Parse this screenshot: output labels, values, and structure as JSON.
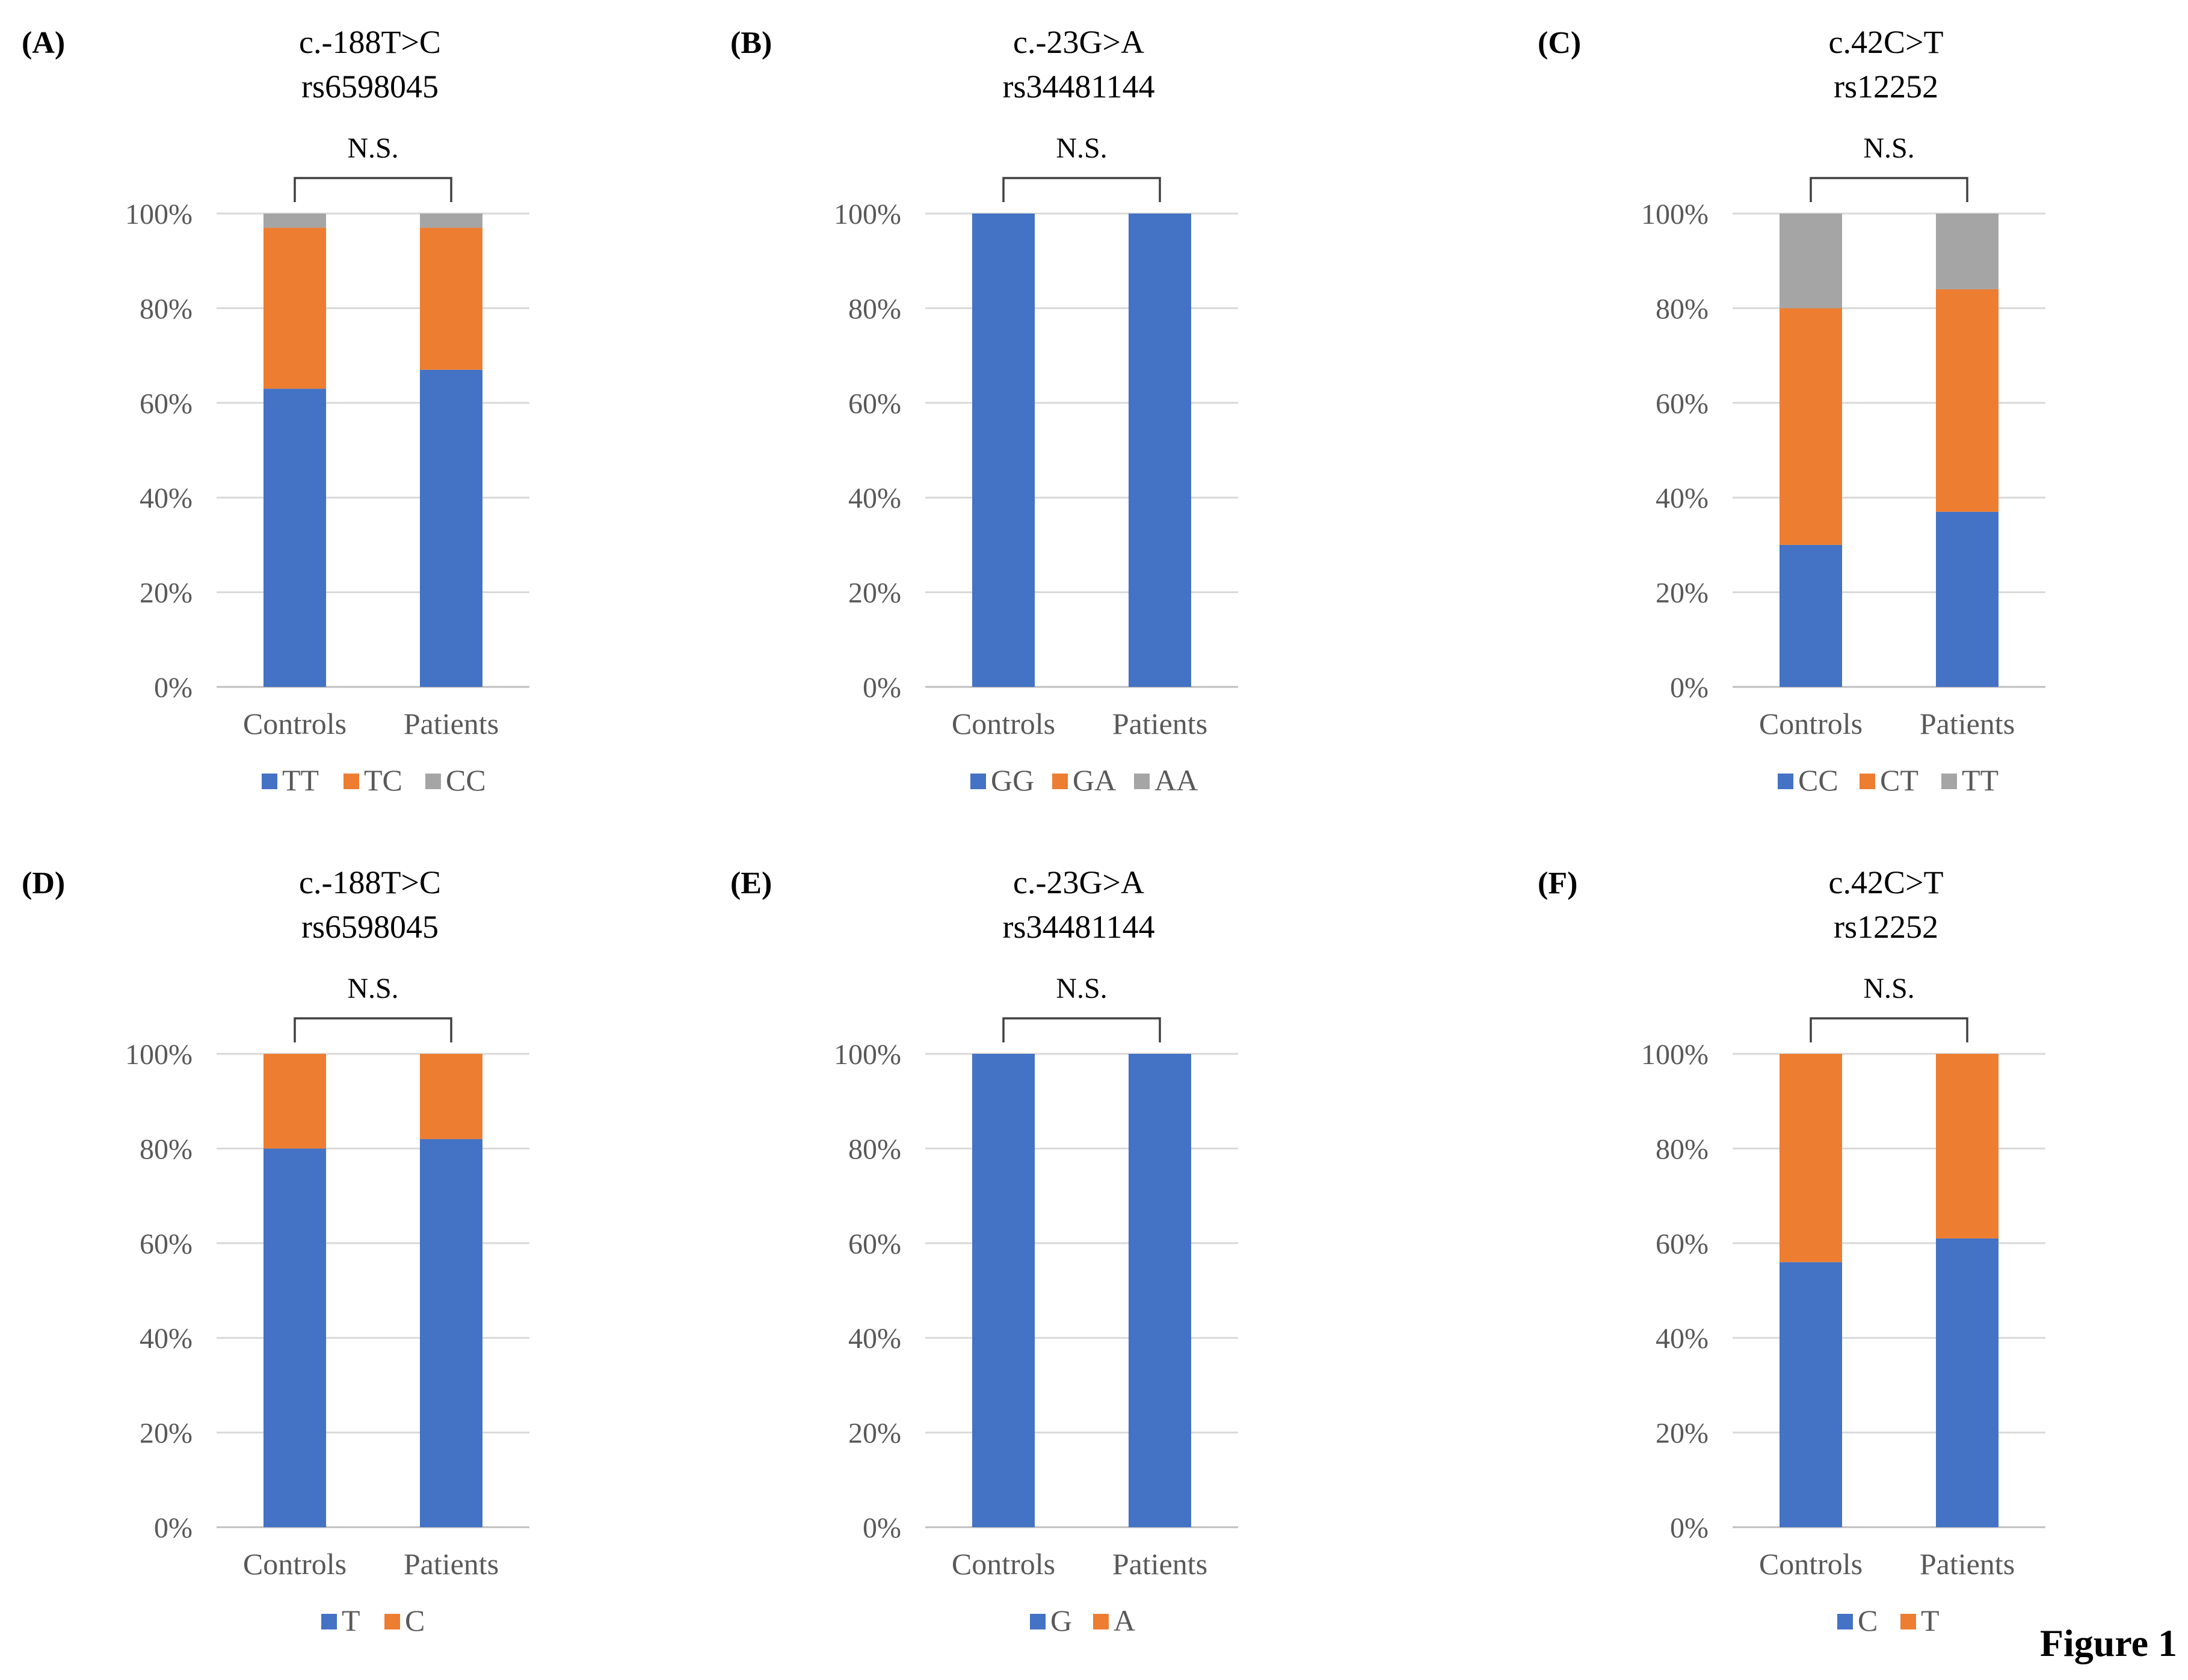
{
  "figure_label": "Figure 1",
  "colors": {
    "blue": "#4472C4",
    "orange": "#ED7D31",
    "gray": "#A5A5A5",
    "grid": "#D9D9D9",
    "axis": "#BFBFBF",
    "bracket": "#404040",
    "text": "#595959"
  },
  "chart_data": [
    {
      "type": "bar",
      "stacked": true,
      "panel": "(A)",
      "title": "c.-188T>C",
      "subtitle": "rs6598045",
      "significance": "N.S.",
      "categories": [
        "Controls",
        "Patients"
      ],
      "series": [
        {
          "name": "TT",
          "values": [
            63,
            67
          ],
          "color": "#4472C4"
        },
        {
          "name": "TC",
          "values": [
            34,
            30
          ],
          "color": "#ED7D31"
        },
        {
          "name": "CC",
          "values": [
            3,
            3
          ],
          "color": "#A5A5A5"
        }
      ],
      "ylim": [
        0,
        100
      ],
      "yticks": [
        "0%",
        "20%",
        "40%",
        "60%",
        "80%",
        "100%"
      ],
      "grid": true,
      "legend": "bottom"
    },
    {
      "type": "bar",
      "stacked": true,
      "panel": "(B)",
      "title": "c.-23G>A",
      "subtitle": "rs34481144",
      "significance": "N.S.",
      "categories": [
        "Controls",
        "Patients"
      ],
      "series": [
        {
          "name": "GG",
          "values": [
            100,
            100
          ],
          "color": "#4472C4"
        },
        {
          "name": "GA",
          "values": [
            0,
            0
          ],
          "color": "#ED7D31"
        },
        {
          "name": "AA",
          "values": [
            0,
            0
          ],
          "color": "#A5A5A5"
        }
      ],
      "ylim": [
        0,
        100
      ],
      "yticks": [
        "0%",
        "20%",
        "40%",
        "60%",
        "80%",
        "100%"
      ],
      "grid": true,
      "legend": "bottom"
    },
    {
      "type": "bar",
      "stacked": true,
      "panel": "(C)",
      "title": "c.42C>T",
      "subtitle": "rs12252",
      "significance": "N.S.",
      "categories": [
        "Controls",
        "Patients"
      ],
      "series": [
        {
          "name": "CC",
          "values": [
            30,
            37
          ],
          "color": "#4472C4"
        },
        {
          "name": "CT",
          "values": [
            50,
            47
          ],
          "color": "#ED7D31"
        },
        {
          "name": "TT",
          "values": [
            20,
            16
          ],
          "color": "#A5A5A5"
        }
      ],
      "ylim": [
        0,
        100
      ],
      "yticks": [
        "0%",
        "20%",
        "40%",
        "60%",
        "80%",
        "100%"
      ],
      "grid": true,
      "legend": "bottom"
    },
    {
      "type": "bar",
      "stacked": true,
      "panel": "(D)",
      "title": "c.-188T>C",
      "subtitle": "rs6598045",
      "significance": "N.S.",
      "categories": [
        "Controls",
        "Patients"
      ],
      "series": [
        {
          "name": "T",
          "values": [
            80,
            82
          ],
          "color": "#4472C4"
        },
        {
          "name": "C",
          "values": [
            20,
            18
          ],
          "color": "#ED7D31"
        }
      ],
      "ylim": [
        0,
        100
      ],
      "yticks": [
        "0%",
        "20%",
        "40%",
        "60%",
        "80%",
        "100%"
      ],
      "grid": true,
      "legend": "bottom"
    },
    {
      "type": "bar",
      "stacked": true,
      "panel": "(E)",
      "title": "c.-23G>A",
      "subtitle": "rs34481144",
      "significance": "N.S.",
      "categories": [
        "Controls",
        "Patients"
      ],
      "series": [
        {
          "name": "G",
          "values": [
            100,
            100
          ],
          "color": "#4472C4"
        },
        {
          "name": "A",
          "values": [
            0,
            0
          ],
          "color": "#ED7D31"
        }
      ],
      "ylim": [
        0,
        100
      ],
      "yticks": [
        "0%",
        "20%",
        "40%",
        "60%",
        "80%",
        "100%"
      ],
      "grid": true,
      "legend": "bottom"
    },
    {
      "type": "bar",
      "stacked": true,
      "panel": "(F)",
      "title": "c.42C>T",
      "subtitle": "rs12252",
      "significance": "N.S.",
      "categories": [
        "Controls",
        "Patients"
      ],
      "series": [
        {
          "name": "C",
          "values": [
            56,
            61
          ],
          "color": "#4472C4"
        },
        {
          "name": "T",
          "values": [
            44,
            39
          ],
          "color": "#ED7D31"
        }
      ],
      "ylim": [
        0,
        100
      ],
      "yticks": [
        "0%",
        "20%",
        "40%",
        "60%",
        "80%",
        "100%"
      ],
      "grid": true,
      "legend": "bottom"
    }
  ]
}
